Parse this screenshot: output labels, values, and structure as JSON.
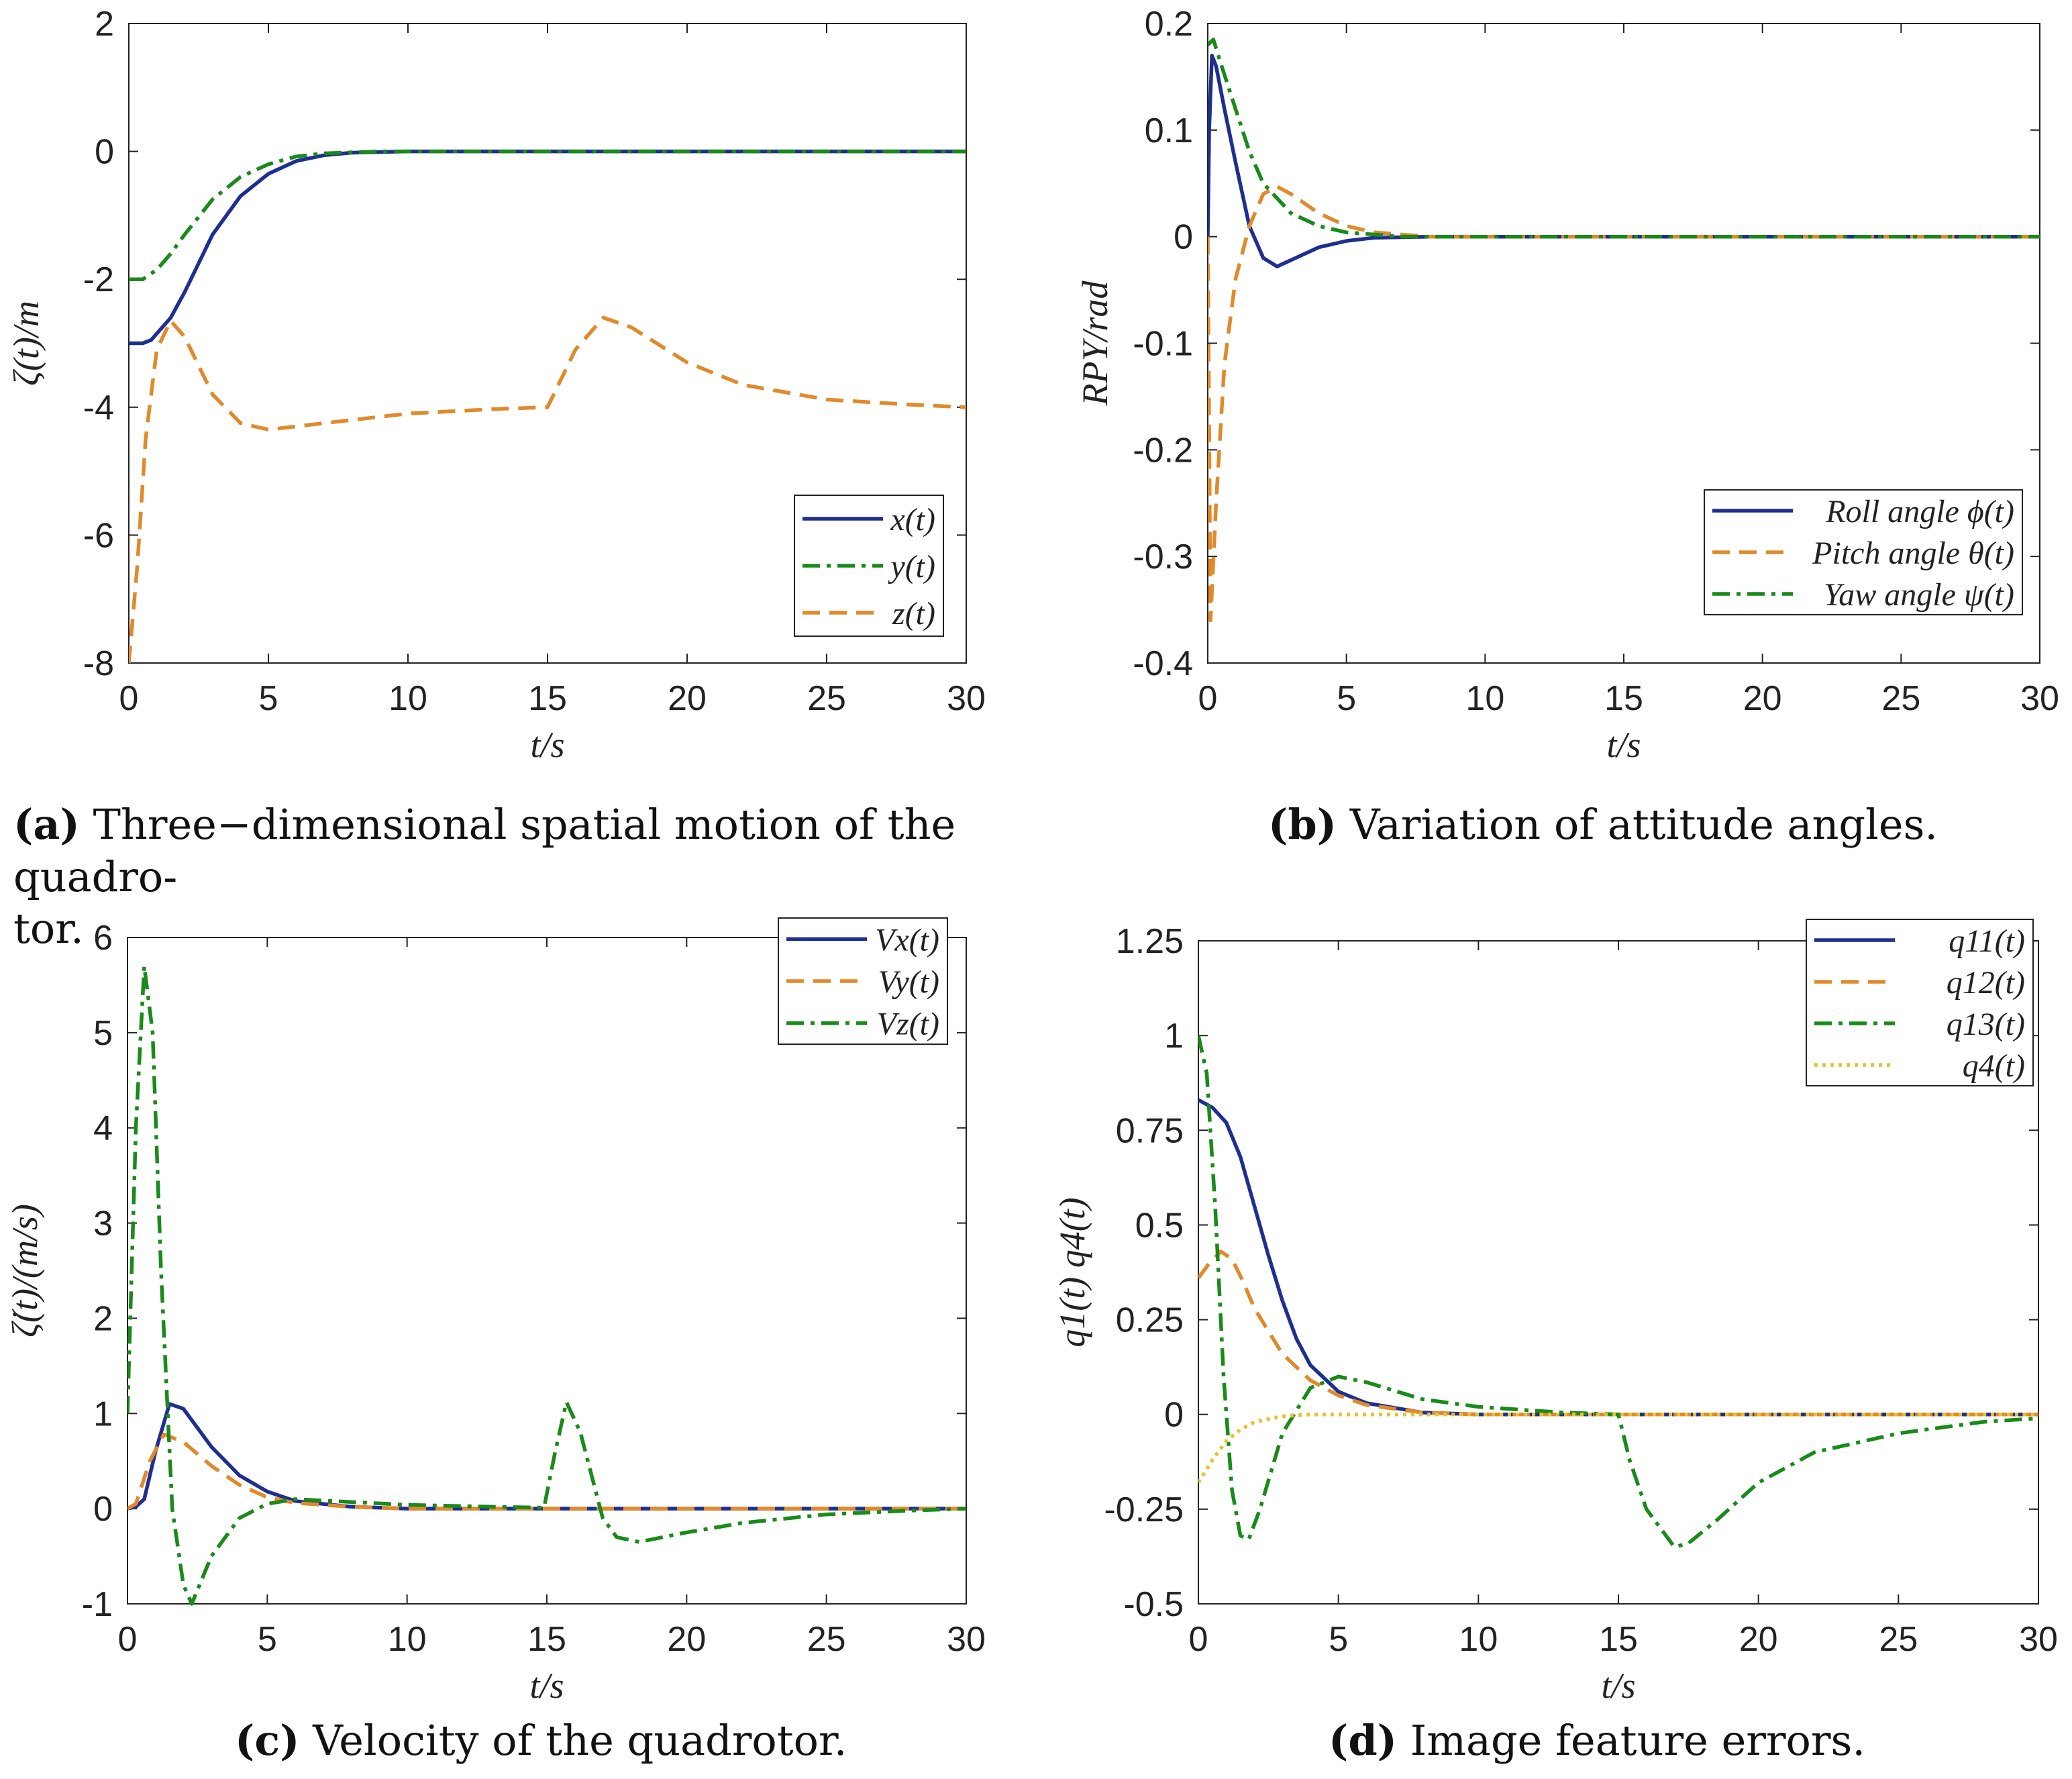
{
  "figure": {
    "captions": [
      {
        "letter": "(a)",
        "text": "Three−dimensional spatial motion of the quadro-",
        "text2": "tor."
      },
      {
        "letter": "(b)",
        "text": "Variation of attitude angles."
      },
      {
        "letter": "(c)",
        "text": "Velocity of the quadrotor."
      },
      {
        "letter": "(d)",
        "text": "Image feature errors."
      }
    ]
  },
  "colors": {
    "blue": "#1f2f8f",
    "orange": "#e08a2c",
    "green": "#1a8a1a",
    "yellow": "#e6c233"
  },
  "chart_data": [
    {
      "id": "a",
      "type": "line",
      "xlabel": "t/s",
      "ylabel": "ζ(t)/m",
      "xlim": [
        0,
        30
      ],
      "ylim": [
        -8,
        2
      ],
      "xticks": [
        "0",
        "5",
        "10",
        "15",
        "20",
        "25",
        "30"
      ],
      "yticks": [
        "-8",
        "-6",
        "-4",
        "-2",
        "0",
        "2"
      ],
      "ytick_values": [
        -8,
        -6,
        -4,
        -2,
        0,
        2
      ],
      "legend": {
        "position": "lower-right"
      },
      "series": [
        {
          "name": "x(t)",
          "color": "blue",
          "style": "solid",
          "points": [
            [
              0,
              -3
            ],
            [
              0.5,
              -3
            ],
            [
              0.8,
              -2.95
            ],
            [
              1.5,
              -2.6
            ],
            [
              2,
              -2.2
            ],
            [
              3,
              -1.3
            ],
            [
              4,
              -0.7
            ],
            [
              5,
              -0.35
            ],
            [
              6,
              -0.15
            ],
            [
              7,
              -0.06
            ],
            [
              8,
              -0.02
            ],
            [
              10,
              0
            ],
            [
              30,
              0
            ]
          ]
        },
        {
          "name": "y(t)",
          "color": "green",
          "style": "dashdot",
          "points": [
            [
              0,
              -2
            ],
            [
              0.5,
              -2
            ],
            [
              1,
              -1.85
            ],
            [
              1.5,
              -1.6
            ],
            [
              2,
              -1.3
            ],
            [
              3,
              -0.75
            ],
            [
              4,
              -0.4
            ],
            [
              5,
              -0.2
            ],
            [
              6,
              -0.08
            ],
            [
              7,
              -0.03
            ],
            [
              9,
              0
            ],
            [
              30,
              0
            ]
          ]
        },
        {
          "name": "z(t)",
          "color": "orange",
          "style": "dashed",
          "points": [
            [
              0,
              -8
            ],
            [
              0.3,
              -6.5
            ],
            [
              0.6,
              -4.5
            ],
            [
              1,
              -3.1
            ],
            [
              1.5,
              -2.65
            ],
            [
              2,
              -2.9
            ],
            [
              3,
              -3.8
            ],
            [
              4,
              -4.25
            ],
            [
              5,
              -4.35
            ],
            [
              7,
              -4.25
            ],
            [
              10,
              -4.1
            ],
            [
              13,
              -4.03
            ],
            [
              15,
              -4
            ],
            [
              16,
              -3.1
            ],
            [
              17,
              -2.6
            ],
            [
              18,
              -2.75
            ],
            [
              20,
              -3.3
            ],
            [
              22,
              -3.65
            ],
            [
              25,
              -3.88
            ],
            [
              28,
              -3.96
            ],
            [
              30,
              -4
            ]
          ]
        }
      ]
    },
    {
      "id": "b",
      "type": "line",
      "xlabel": "t/s",
      "ylabel": "RPY/rad",
      "xlim": [
        0,
        30
      ],
      "ylim": [
        -0.4,
        0.2
      ],
      "xticks": [
        "0",
        "5",
        "10",
        "15",
        "20",
        "25",
        "30"
      ],
      "yticks": [
        "-0.4",
        "-0.3",
        "-0.2",
        "-0.1",
        "0",
        "0.1",
        "0.2"
      ],
      "ytick_values": [
        -0.4,
        -0.3,
        -0.2,
        -0.1,
        0,
        0.1,
        0.2
      ],
      "legend": {
        "position": "lower-right"
      },
      "series": [
        {
          "name": "Roll angle ϕ(t)",
          "color": "blue",
          "style": "solid",
          "points": [
            [
              0,
              0
            ],
            [
              0.05,
              0.1
            ],
            [
              0.15,
              0.17
            ],
            [
              0.3,
              0.16
            ],
            [
              0.6,
              0.12
            ],
            [
              1,
              0.07
            ],
            [
              1.5,
              0.01
            ],
            [
              2,
              -0.02
            ],
            [
              2.5,
              -0.028
            ],
            [
              3,
              -0.022
            ],
            [
              4,
              -0.01
            ],
            [
              5,
              -0.004
            ],
            [
              6,
              -0.001
            ],
            [
              8,
              0
            ],
            [
              30,
              0
            ]
          ]
        },
        {
          "name": "Pitch angle θ(t)",
          "color": "orange",
          "style": "dashed",
          "points": [
            [
              0,
              0
            ],
            [
              0.1,
              -0.36
            ],
            [
              0.3,
              -0.25
            ],
            [
              0.6,
              -0.12
            ],
            [
              1,
              -0.04
            ],
            [
              1.5,
              0.01
            ],
            [
              2,
              0.04
            ],
            [
              2.5,
              0.047
            ],
            [
              3,
              0.04
            ],
            [
              4,
              0.022
            ],
            [
              5,
              0.01
            ],
            [
              6,
              0.004
            ],
            [
              8,
              0
            ],
            [
              30,
              0
            ]
          ]
        },
        {
          "name": "Yaw angle ψ(t)",
          "color": "green",
          "style": "dashdot",
          "points": [
            [
              0,
              0.18
            ],
            [
              0.2,
              0.185
            ],
            [
              0.5,
              0.16
            ],
            [
              1,
              0.12
            ],
            [
              1.5,
              0.08
            ],
            [
              2,
              0.05
            ],
            [
              3,
              0.022
            ],
            [
              4,
              0.01
            ],
            [
              5,
              0.004
            ],
            [
              7,
              0
            ],
            [
              30,
              0
            ]
          ]
        }
      ]
    },
    {
      "id": "c",
      "type": "line",
      "xlabel": "t/s",
      "ylabel": "ζ̇(t)/(m/s)",
      "xlim": [
        0,
        30
      ],
      "ylim": [
        -1,
        6
      ],
      "xticks": [
        "0",
        "5",
        "10",
        "15",
        "20",
        "25",
        "30"
      ],
      "yticks": [
        "-1",
        "0",
        "1",
        "2",
        "3",
        "4",
        "5",
        "6"
      ],
      "ytick_values": [
        -1,
        0,
        1,
        2,
        3,
        4,
        5,
        6
      ],
      "legend": {
        "position": "top-right"
      },
      "series": [
        {
          "name": "Vx(t)",
          "color": "blue",
          "style": "solid",
          "points": [
            [
              0,
              0
            ],
            [
              0.3,
              0.02
            ],
            [
              0.6,
              0.1
            ],
            [
              1,
              0.6
            ],
            [
              1.5,
              1.1
            ],
            [
              2,
              1.05
            ],
            [
              3,
              0.65
            ],
            [
              4,
              0.35
            ],
            [
              5,
              0.18
            ],
            [
              6,
              0.08
            ],
            [
              8,
              0.02
            ],
            [
              10,
              0
            ],
            [
              30,
              0
            ]
          ]
        },
        {
          "name": "Vy(t)",
          "color": "orange",
          "style": "dashed",
          "points": [
            [
              0,
              0
            ],
            [
              0.3,
              0.05
            ],
            [
              0.8,
              0.5
            ],
            [
              1.3,
              0.78
            ],
            [
              2,
              0.7
            ],
            [
              3,
              0.45
            ],
            [
              4,
              0.25
            ],
            [
              5,
              0.12
            ],
            [
              6,
              0.06
            ],
            [
              8,
              0.02
            ],
            [
              10,
              0
            ],
            [
              30,
              0
            ]
          ]
        },
        {
          "name": "Vz(t)",
          "color": "green",
          "style": "dashdot",
          "points": [
            [
              0,
              1
            ],
            [
              0.3,
              4
            ],
            [
              0.6,
              5.7
            ],
            [
              0.9,
              5
            ],
            [
              1.2,
              2.5
            ],
            [
              1.6,
              0
            ],
            [
              2,
              -0.8
            ],
            [
              2.3,
              -1
            ],
            [
              3,
              -0.5
            ],
            [
              4,
              -0.1
            ],
            [
              5,
              0.05
            ],
            [
              6,
              0.1
            ],
            [
              8,
              0.07
            ],
            [
              10,
              0.04
            ],
            [
              13,
              0.02
            ],
            [
              14.9,
              0.01
            ],
            [
              15.3,
              0.6
            ],
            [
              15.7,
              1.12
            ],
            [
              16.2,
              0.8
            ],
            [
              17,
              -0.1
            ],
            [
              17.5,
              -0.3
            ],
            [
              18.3,
              -0.35
            ],
            [
              20,
              -0.25
            ],
            [
              22,
              -0.15
            ],
            [
              25,
              -0.06
            ],
            [
              28,
              -0.02
            ],
            [
              30,
              0
            ]
          ]
        }
      ]
    },
    {
      "id": "d",
      "type": "line",
      "xlabel": "t/s",
      "ylabel": "q1(t)   q4(t)",
      "xlim": [
        0,
        30
      ],
      "ylim": [
        -0.5,
        1.25
      ],
      "xticks": [
        "0",
        "5",
        "10",
        "15",
        "20",
        "25",
        "30"
      ],
      "yticks": [
        "-0.5",
        "-0.25",
        "0",
        "0.25",
        "0.5",
        "0.75",
        "1",
        "1.25"
      ],
      "ytick_values": [
        -0.5,
        -0.25,
        0,
        0.25,
        0.5,
        0.75,
        1,
        1.25
      ],
      "legend": {
        "position": "top-right"
      },
      "series": [
        {
          "name": "q11(t)",
          "color": "blue",
          "style": "solid",
          "points": [
            [
              0,
              0.83
            ],
            [
              0.5,
              0.81
            ],
            [
              1,
              0.77
            ],
            [
              1.5,
              0.68
            ],
            [
              2,
              0.55
            ],
            [
              2.5,
              0.42
            ],
            [
              3,
              0.3
            ],
            [
              3.5,
              0.2
            ],
            [
              4,
              0.13
            ],
            [
              5,
              0.06
            ],
            [
              6,
              0.03
            ],
            [
              8,
              0.005
            ],
            [
              10,
              0
            ],
            [
              30,
              0
            ]
          ]
        },
        {
          "name": "q12(t)",
          "color": "orange",
          "style": "dashed",
          "points": [
            [
              0,
              0.36
            ],
            [
              0.4,
              0.4
            ],
            [
              0.8,
              0.43
            ],
            [
              1.2,
              0.41
            ],
            [
              1.6,
              0.35
            ],
            [
              2,
              0.28
            ],
            [
              3,
              0.16
            ],
            [
              4,
              0.09
            ],
            [
              5,
              0.05
            ],
            [
              6,
              0.025
            ],
            [
              8,
              0.005
            ],
            [
              10,
              0
            ],
            [
              30,
              0
            ]
          ]
        },
        {
          "name": "q13(t)",
          "color": "green",
          "style": "dashdot",
          "points": [
            [
              0,
              1
            ],
            [
              0.3,
              0.9
            ],
            [
              0.6,
              0.55
            ],
            [
              0.9,
              0.1
            ],
            [
              1.2,
              -0.2
            ],
            [
              1.5,
              -0.32
            ],
            [
              1.8,
              -0.33
            ],
            [
              2.2,
              -0.25
            ],
            [
              3,
              -0.05
            ],
            [
              4,
              0.07
            ],
            [
              5,
              0.1
            ],
            [
              6,
              0.085
            ],
            [
              8,
              0.04
            ],
            [
              10,
              0.02
            ],
            [
              13,
              0.005
            ],
            [
              15,
              0
            ],
            [
              15.4,
              -0.12
            ],
            [
              16,
              -0.25
            ],
            [
              17,
              -0.35
            ],
            [
              17.5,
              -0.34
            ],
            [
              18.5,
              -0.28
            ],
            [
              20,
              -0.18
            ],
            [
              22,
              -0.1
            ],
            [
              25,
              -0.05
            ],
            [
              28,
              -0.02
            ],
            [
              30,
              -0.01
            ]
          ]
        },
        {
          "name": "q4(t)",
          "color": "yellow",
          "style": "dotted",
          "points": [
            [
              0,
              -0.18
            ],
            [
              0.5,
              -0.12
            ],
            [
              1,
              -0.07
            ],
            [
              1.5,
              -0.04
            ],
            [
              2,
              -0.02
            ],
            [
              3,
              -0.005
            ],
            [
              4,
              0
            ],
            [
              30,
              0
            ]
          ]
        }
      ]
    }
  ]
}
